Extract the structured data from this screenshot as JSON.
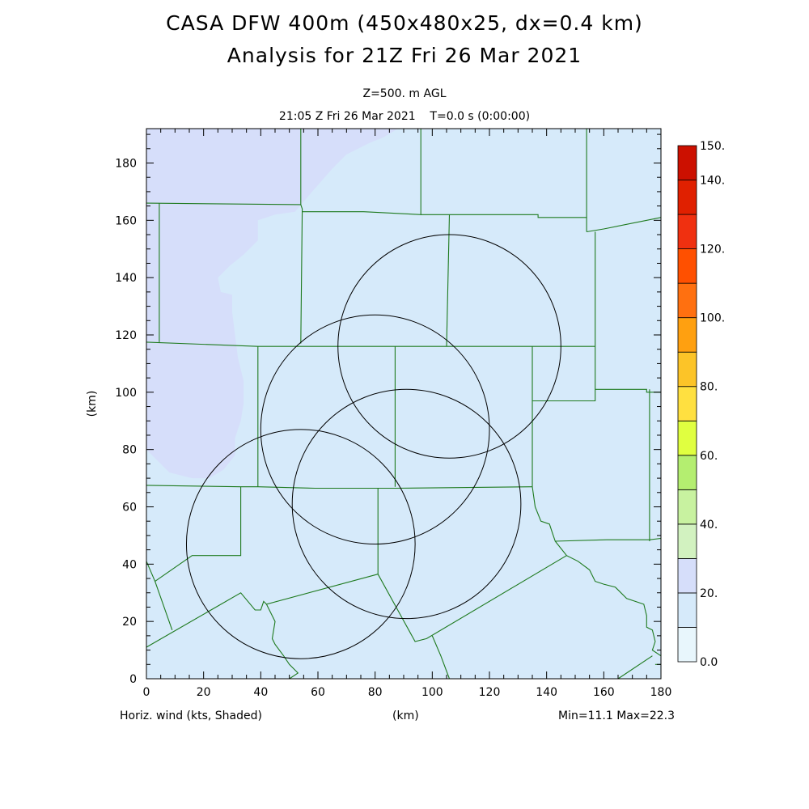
{
  "header": {
    "title_line1": "CASA DFW 400m (450x480x25, dx=0.4 km)",
    "title_line2": "Analysis for 21Z Fri 26 Mar 2021",
    "level": "Z=500. m AGL",
    "time": "21:05 Z Fri 26 Mar 2021    T=0.0 s (0:00:00)"
  },
  "footer": {
    "field": "Horiz. wind (kts, Shaded)",
    "xunit": "(km)",
    "minmax": "Min=11.1 Max=22.3"
  },
  "chart_data": {
    "type": "heatmap",
    "variable": "Horiz. wind (kts, Shaded)",
    "xlabel": "(km)",
    "ylabel": "(km)",
    "xlim": [
      0,
      180
    ],
    "ylim": [
      0,
      192
    ],
    "xticks": [
      0,
      20,
      40,
      60,
      80,
      100,
      120,
      140,
      160,
      180
    ],
    "yticks": [
      0,
      20,
      40,
      60,
      80,
      100,
      120,
      140,
      160,
      180
    ],
    "min": 11.1,
    "max": 22.3,
    "colorbar": {
      "levels": [
        0,
        10,
        20,
        30,
        40,
        50,
        60,
        70,
        80,
        90,
        100,
        110,
        120,
        130,
        140,
        150
      ],
      "labels": [
        "0.0",
        "20.",
        "40.",
        "60.",
        "80.",
        "100.",
        "120.",
        "140.",
        "150."
      ],
      "label_values": [
        0,
        20,
        40,
        60,
        80,
        100,
        120,
        140,
        150
      ],
      "colors": [
        "#e8f6fc",
        "#d6eafa",
        "#d6defa",
        "#d2f2c0",
        "#c8f2a0",
        "#b4ee70",
        "#e0ff40",
        "#ffe040",
        "#fcc428",
        "#ffa010",
        "#ff7010",
        "#ff5000",
        "#f03010",
        "#e02000",
        "#cc1000"
      ]
    },
    "regions": [
      {
        "name": "10-20 kts",
        "color": "#d6eafa"
      },
      {
        "name": "20-30 kts",
        "color": "#d6defa"
      }
    ],
    "radar_ranges": [
      {
        "center": [
          106,
          116
        ],
        "radius": 39
      },
      {
        "center": [
          80,
          87
        ],
        "radius": 40
      },
      {
        "center": [
          91,
          61
        ],
        "radius": 40
      },
      {
        "center": [
          54,
          47
        ],
        "radius": 40
      }
    ],
    "boundary_color": "#1e7a1e"
  }
}
